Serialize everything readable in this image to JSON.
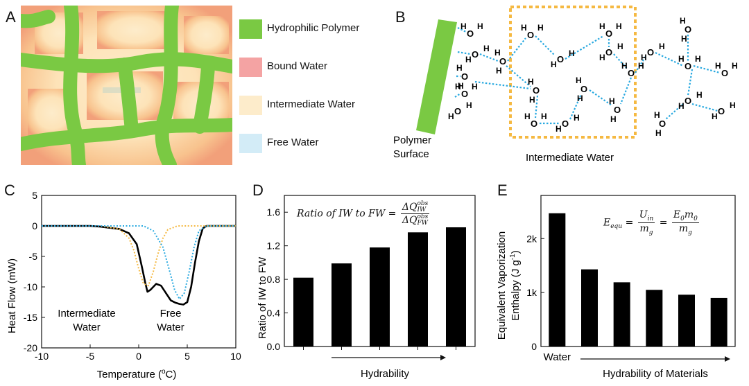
{
  "panels": {
    "A": {
      "label": "A"
    },
    "B": {
      "label": "B"
    },
    "C": {
      "label": "C"
    },
    "D": {
      "label": "D"
    },
    "E": {
      "label": "E"
    }
  },
  "legend": [
    {
      "label": "Hydrophilic Polymer",
      "color": "#7ac943"
    },
    {
      "label": "Bound Water",
      "color": "#f4a3a3"
    },
    {
      "label": "Intermediate Water",
      "color": "#fdeccb"
    },
    {
      "label": "Free Water",
      "color": "#d3ecf7"
    }
  ],
  "panelB": {
    "polymer_label_1": "Polymer",
    "polymer_label_2": "Surface",
    "intermediate_label": "Intermediate Water",
    "box_color": "#f5b942",
    "bond_color": "#29a9e0",
    "molecule": {
      "o": "O",
      "h": "H"
    }
  },
  "panelC": {
    "chart_data": {
      "type": "line",
      "xlabel": "Temperature (°C)",
      "xlabel_pre": "Temperature (",
      "xlabel_sup": "o",
      "xlabel_post": "C)",
      "ylabel": "Heat Flow (mW)",
      "xlim": [
        -10,
        10
      ],
      "ylim": [
        -20,
        5
      ],
      "xticks": [
        "-10",
        "-5",
        "0",
        "5",
        "10"
      ],
      "yticks": [
        "5",
        "0",
        "-5",
        "-10",
        "-15",
        "-20"
      ],
      "series": [
        {
          "style": "solid",
          "color": "#000000",
          "x": [
            -10,
            -5,
            -4,
            -2,
            -1,
            -0.2,
            0.3,
            0.7,
            0.9,
            1.2,
            1.8,
            2.3,
            2.8,
            3.3,
            3.8,
            4.2,
            4.6,
            5,
            5.4,
            5.8,
            6.2,
            6.6,
            7,
            10
          ],
          "y": [
            0,
            0,
            -0.1,
            -0.5,
            -1.2,
            -3,
            -6.5,
            -9.5,
            -10.8,
            -10.5,
            -9.5,
            -9.8,
            -11,
            -12.2,
            -12.6,
            -12.8,
            -12.9,
            -12.5,
            -10,
            -6,
            -2.5,
            -0.4,
            0,
            0
          ]
        },
        {
          "style": "dotted",
          "color": "#f5b942",
          "x": [
            -10,
            -4,
            -2,
            -1,
            -0.5,
            0,
            0.5,
            1,
            1.5,
            2,
            2.5,
            3,
            4,
            10
          ],
          "y": [
            0,
            0,
            -0.5,
            -2,
            -4,
            -7,
            -9.5,
            -9.8,
            -7.5,
            -4.5,
            -2,
            -0.6,
            0,
            0
          ]
        },
        {
          "style": "dotted",
          "color": "#29a9e0",
          "x": [
            -10,
            0.5,
            1.5,
            2.5,
            3.2,
            3.7,
            4.2,
            4.7,
            5.2,
            5.7,
            6.2,
            7,
            10
          ],
          "y": [
            0,
            0,
            -0.8,
            -3.5,
            -7.5,
            -10.5,
            -12,
            -11,
            -7.5,
            -3.5,
            -0.8,
            0,
            0
          ]
        }
      ],
      "annotations": [
        {
          "line1": "Intermediate",
          "line2": "Water"
        },
        {
          "line1": "Free",
          "line2": "Water"
        }
      ]
    }
  },
  "panelD": {
    "formula_lhs": "Ratio of IW to FW =",
    "formula_num": "ΔQ",
    "formula_sub_num": "IW",
    "formula_sup": "obs",
    "formula_den": "ΔQ",
    "formula_sub_den": "FW",
    "chart_data": {
      "type": "bar",
      "ylabel": "Ratio of IW to FW",
      "xlabel": "Hydrability",
      "categories": [
        "",
        "",
        "",
        "",
        ""
      ],
      "values": [
        0.82,
        0.99,
        1.18,
        1.36,
        1.42
      ],
      "ylim": [
        0,
        1.8
      ],
      "yticks": [
        "0.0",
        "0.4",
        "0.8",
        "1.2",
        "1.6"
      ]
    }
  },
  "panelE": {
    "formula": {
      "lhs": "E",
      "lhs_sub": "equ",
      "n1": "U",
      "n1_sub": "in",
      "d1": "m",
      "d1_sub": "g",
      "n2": "E",
      "n2_sub": "0",
      "n2b": "m",
      "n2b_sub": "0",
      "d2": "m",
      "d2_sub": "g"
    },
    "chart_data": {
      "type": "bar",
      "ylabel_1": "Equivalent Vaporization",
      "ylabel_2_pre": "Enthalpy (J g",
      "ylabel_2_sup": "-1",
      "ylabel_2_post": ")",
      "categories": [
        "Water",
        "",
        "",
        "",
        "",
        ""
      ],
      "values": [
        2470,
        1430,
        1190,
        1050,
        960,
        900
      ],
      "ylim": [
        0,
        2800
      ],
      "yticks": [
        "0",
        "1k",
        "2k"
      ],
      "xlabel": "Hydrability of Materials"
    }
  }
}
